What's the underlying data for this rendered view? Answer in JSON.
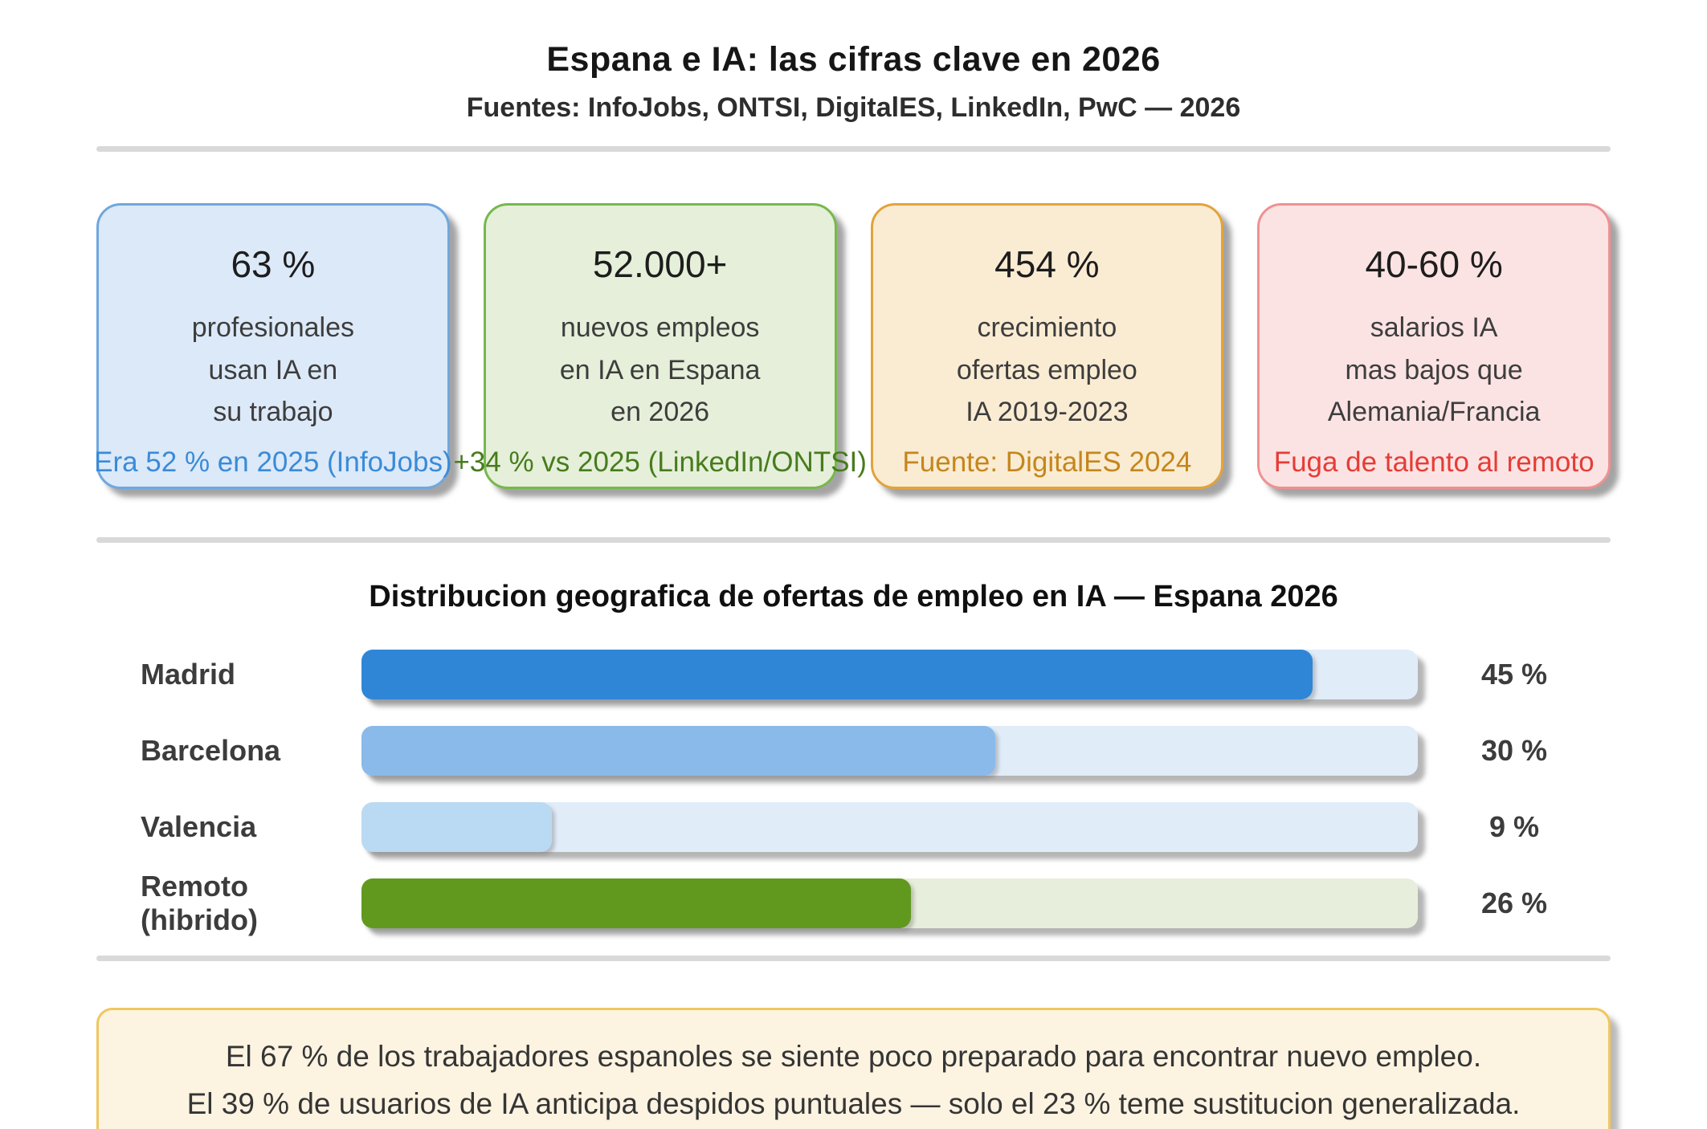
{
  "header": {
    "title": "Espana e IA: las cifras clave en 2026",
    "subtitle": "Fuentes: InfoJobs, ONTSI, DigitalES, LinkedIn, PwC — 2026"
  },
  "cards": [
    {
      "value": "63 %",
      "lines": [
        "profesionales",
        "usan IA en",
        "su trabajo"
      ],
      "footnote": "Era 52 % en 2025 (InfoJobs)",
      "background_color": "#dce9f8",
      "border_color": "#6fa7de",
      "footnote_color": "#3a8bd8"
    },
    {
      "value": "52.000+",
      "lines": [
        "nuevos empleos",
        "en IA en Espana",
        "en 2026"
      ],
      "footnote": "+34 % vs 2025 (LinkedIn/ONTSI)",
      "background_color": "#e5efd9",
      "border_color": "#77b84d",
      "footnote_color": "#477c1d"
    },
    {
      "value": "454 %",
      "lines": [
        "crecimiento",
        "ofertas empleo",
        "IA 2019-2023"
      ],
      "footnote": "Fuente: DigitalES 2024",
      "background_color": "#faecd3",
      "border_color": "#e2a33c",
      "footnote_color": "#c5861c"
    },
    {
      "value": "40-60 %",
      "lines": [
        "salarios IA",
        "mas bajos que",
        "Alemania/Francia"
      ],
      "footnote": "Fuga de talento al remoto",
      "background_color": "#fbe3e3",
      "border_color": "#ef9191",
      "footnote_color": "#e63c36"
    }
  ],
  "chart_data": {
    "type": "bar",
    "orientation": "horizontal",
    "title": "Distribucion geografica de ofertas de empleo en IA — Espana 2026",
    "categories": [
      "Madrid",
      "Barcelona",
      "Valencia",
      "Remoto (hibrido)"
    ],
    "values": [
      45,
      30,
      9,
      26
    ],
    "value_labels": [
      "45 %",
      "30 %",
      "9 %",
      "26 %"
    ],
    "xlim": [
      0,
      50
    ],
    "grid": false,
    "legend": "none",
    "bar_colors": [
      "#2f86d6",
      "#8abae9",
      "#badaf3",
      "#61991f"
    ],
    "track_colors": [
      "#e1ecf9",
      "#e1ecf9",
      "#e1ecf9",
      "#e7eedb"
    ]
  },
  "footer": {
    "line1": "El 67 % de los trabajadores espanoles se siente poco preparado para encontrar nuevo empleo.",
    "line2": "El 39 % de usuarios de IA anticipa despidos puntuales — solo el 23 % teme sustitucion generalizada."
  }
}
